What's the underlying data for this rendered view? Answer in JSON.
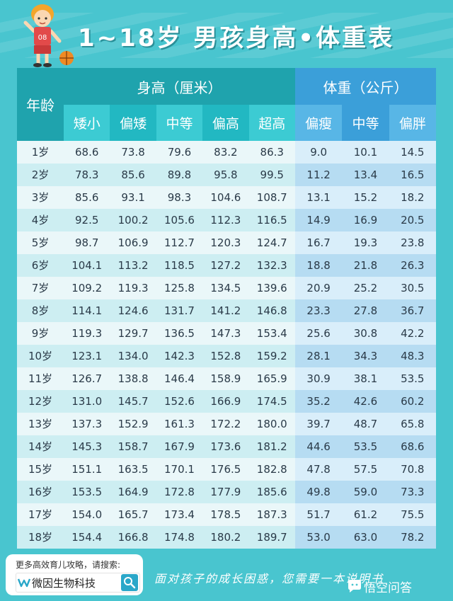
{
  "title": "1~18岁 男孩身高•体重表",
  "headers": {
    "age": "年龄",
    "height_group": "身高（厘米）",
    "weight_group": "体重（公斤）",
    "height_cols": [
      "矮小",
      "偏矮",
      "中等",
      "偏高",
      "超高"
    ],
    "weight_cols": [
      "偏瘦",
      "中等",
      "偏胖"
    ]
  },
  "rows": [
    {
      "age": "1岁",
      "h": [
        "68.6",
        "73.8",
        "79.6",
        "83.2",
        "86.3"
      ],
      "w": [
        "9.0",
        "10.1",
        "14.5"
      ]
    },
    {
      "age": "2岁",
      "h": [
        "78.3",
        "85.6",
        "89.8",
        "95.8",
        "99.5"
      ],
      "w": [
        "11.2",
        "13.4",
        "16.5"
      ]
    },
    {
      "age": "3岁",
      "h": [
        "85.6",
        "93.1",
        "98.3",
        "104.6",
        "108.7"
      ],
      "w": [
        "13.1",
        "15.2",
        "18.2"
      ]
    },
    {
      "age": "4岁",
      "h": [
        "92.5",
        "100.2",
        "105.6",
        "112.3",
        "116.5"
      ],
      "w": [
        "14.9",
        "16.9",
        "20.5"
      ]
    },
    {
      "age": "5岁",
      "h": [
        "98.7",
        "106.9",
        "112.7",
        "120.3",
        "124.7"
      ],
      "w": [
        "16.7",
        "19.3",
        "23.8"
      ]
    },
    {
      "age": "6岁",
      "h": [
        "104.1",
        "113.2",
        "118.5",
        "127.2",
        "132.3"
      ],
      "w": [
        "18.8",
        "21.8",
        "26.3"
      ]
    },
    {
      "age": "7岁",
      "h": [
        "109.2",
        "119.3",
        "125.8",
        "134.5",
        "139.6"
      ],
      "w": [
        "20.9",
        "25.2",
        "30.5"
      ]
    },
    {
      "age": "8岁",
      "h": [
        "114.1",
        "124.6",
        "131.7",
        "141.2",
        "146.8"
      ],
      "w": [
        "23.3",
        "27.8",
        "36.7"
      ]
    },
    {
      "age": "9岁",
      "h": [
        "119.3",
        "129.7",
        "136.5",
        "147.3",
        "153.4"
      ],
      "w": [
        "25.6",
        "30.8",
        "42.2"
      ]
    },
    {
      "age": "10岁",
      "h": [
        "123.1",
        "134.0",
        "142.3",
        "152.8",
        "159.2"
      ],
      "w": [
        "28.1",
        "34.3",
        "48.3"
      ]
    },
    {
      "age": "11岁",
      "h": [
        "126.7",
        "138.8",
        "146.4",
        "158.9",
        "165.9"
      ],
      "w": [
        "30.9",
        "38.1",
        "53.5"
      ]
    },
    {
      "age": "12岁",
      "h": [
        "131.0",
        "145.7",
        "152.6",
        "166.9",
        "174.5"
      ],
      "w": [
        "35.2",
        "42.6",
        "60.2"
      ]
    },
    {
      "age": "13岁",
      "h": [
        "137.3",
        "152.9",
        "161.3",
        "172.2",
        "180.0"
      ],
      "w": [
        "39.7",
        "48.7",
        "65.8"
      ]
    },
    {
      "age": "14岁",
      "h": [
        "145.3",
        "158.7",
        "167.9",
        "173.6",
        "181.2"
      ],
      "w": [
        "44.6",
        "53.5",
        "68.6"
      ]
    },
    {
      "age": "15岁",
      "h": [
        "151.1",
        "163.5",
        "170.1",
        "176.5",
        "182.8"
      ],
      "w": [
        "47.8",
        "57.5",
        "70.8"
      ]
    },
    {
      "age": "16岁",
      "h": [
        "153.5",
        "164.9",
        "172.8",
        "177.9",
        "185.6"
      ],
      "w": [
        "49.8",
        "59.0",
        "73.3"
      ]
    },
    {
      "age": "17岁",
      "h": [
        "154.0",
        "165.7",
        "173.4",
        "178.5",
        "187.3"
      ],
      "w": [
        "51.7",
        "61.2",
        "75.5"
      ]
    },
    {
      "age": "18岁",
      "h": [
        "154.4",
        "166.8",
        "174.8",
        "180.2",
        "189.7"
      ],
      "w": [
        "53.0",
        "63.0",
        "78.2"
      ]
    }
  ],
  "footer": {
    "search_hint": "更多高效育儿攻略，请搜索:",
    "brand": "微因生物科技",
    "slogan": "面对孩子的成长困惑，您需要一本说明书",
    "watermark": "悟空问答"
  },
  "colors": {
    "background": "#49c5cf",
    "height_header": "#1fa3ad",
    "weight_header": "#3b9fd9"
  },
  "icons": {
    "mascot": "basketball-boy-icon",
    "brand_logo": "brand-logo-icon",
    "search": "search-icon",
    "watermark": "wukong-icon"
  }
}
